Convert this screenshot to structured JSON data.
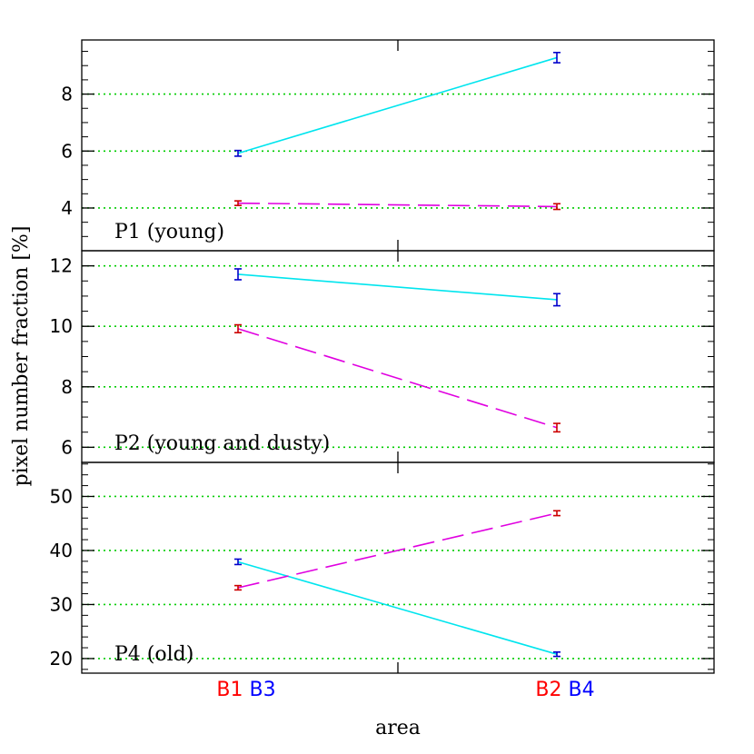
{
  "chart_data": {
    "type": "line",
    "xlabel": "area",
    "ylabel": "pixel number fraction [%]",
    "categories": [
      {
        "labels": [
          "B1",
          "B3"
        ],
        "colors": [
          "#ff0000",
          "#0000ff"
        ]
      },
      {
        "labels": [
          "B2",
          "B4"
        ],
        "colors": [
          "#ff0000",
          "#0000ff"
        ]
      }
    ],
    "grid": "horizontal dotted",
    "grid_color": "#00cc00",
    "panels": [
      {
        "label": "P1 (young)",
        "ylim": [
          2.5,
          9.9
        ],
        "yticks": [
          4,
          6,
          8
        ],
        "series": [
          {
            "line": "solid",
            "color": "#00e5ee",
            "marker_color": "#0000cc",
            "values": [
              5.92,
              9.28
            ],
            "errors": [
              0.1,
              0.18
            ]
          },
          {
            "line": "dashed",
            "color": "#e000e0",
            "marker_color": "#cc0000",
            "values": [
              4.17,
              4.05
            ],
            "errors": [
              0.08,
              0.1
            ]
          }
        ]
      },
      {
        "label": "P2 (young and dusty)",
        "ylim": [
          5.5,
          12.5
        ],
        "yticks": [
          6,
          8,
          10,
          12
        ],
        "series": [
          {
            "line": "solid",
            "color": "#00e5ee",
            "marker_color": "#0000cc",
            "values": [
              11.72,
              10.88
            ],
            "errors": [
              0.18,
              0.2
            ]
          },
          {
            "line": "dashed",
            "color": "#e000e0",
            "marker_color": "#cc0000",
            "values": [
              9.92,
              6.65
            ],
            "errors": [
              0.13,
              0.14
            ]
          }
        ]
      },
      {
        "label": "P4 (old)",
        "ylim": [
          17.3,
          56.3
        ],
        "yticks": [
          20,
          30,
          40,
          50
        ],
        "series": [
          {
            "line": "solid",
            "color": "#00e5ee",
            "marker_color": "#0000cc",
            "values": [
              37.9,
              20.8
            ],
            "errors": [
              0.5,
              0.4
            ]
          },
          {
            "line": "dashed",
            "color": "#e000e0",
            "marker_color": "#cc0000",
            "values": [
              33.1,
              46.9
            ],
            "errors": [
              0.4,
              0.45
            ]
          }
        ]
      }
    ]
  }
}
